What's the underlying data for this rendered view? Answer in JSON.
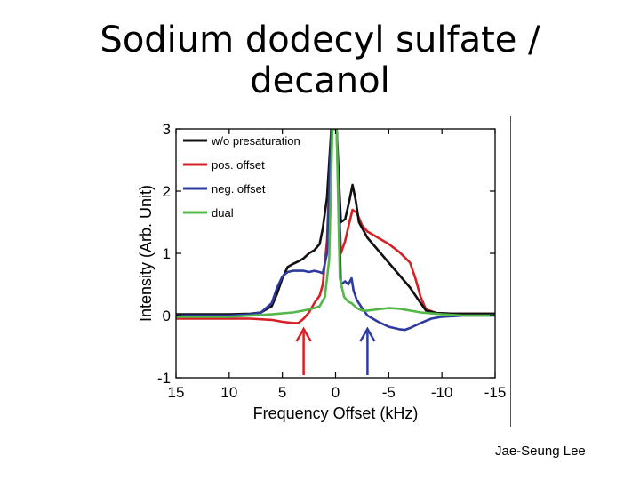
{
  "slide": {
    "title_line1": "Sodium dodecyl sulfate /",
    "title_line2": "decanol",
    "credit": "Jae-Seung Lee"
  },
  "chart_data": {
    "type": "line",
    "title": "",
    "xlabel": "Frequency Offset (kHz)",
    "ylabel": "Intensity (Arb. Unit)",
    "xlim": [
      15,
      -15
    ],
    "ylim": [
      -1,
      3
    ],
    "x_reversed": true,
    "xticks": [
      15,
      10,
      5,
      0,
      -5,
      -10,
      -15
    ],
    "yticks": [
      -1,
      0,
      1,
      2,
      3
    ],
    "grid": false,
    "legend_position": "top-left",
    "series": [
      {
        "name": "w/o presaturation",
        "color": "#111111",
        "points": [
          [
            15,
            0.02
          ],
          [
            10,
            0.02
          ],
          [
            8,
            0.03
          ],
          [
            7,
            0.05
          ],
          [
            6,
            0.15
          ],
          [
            5.5,
            0.35
          ],
          [
            5,
            0.6
          ],
          [
            4.5,
            0.78
          ],
          [
            4,
            0.83
          ],
          [
            3.5,
            0.87
          ],
          [
            3,
            0.92
          ],
          [
            2.5,
            1.0
          ],
          [
            2,
            1.05
          ],
          [
            1.5,
            1.15
          ],
          [
            1.2,
            1.4
          ],
          [
            0.8,
            1.9
          ],
          [
            0.4,
            3.0
          ],
          [
            0.1,
            3.0
          ],
          [
            -0.1,
            3.0
          ],
          [
            -0.5,
            1.5
          ],
          [
            -0.9,
            1.55
          ],
          [
            -1.3,
            1.85
          ],
          [
            -1.6,
            2.1
          ],
          [
            -1.9,
            1.85
          ],
          [
            -2.2,
            1.5
          ],
          [
            -3,
            1.25
          ],
          [
            -4,
            1.05
          ],
          [
            -5,
            0.85
          ],
          [
            -6,
            0.65
          ],
          [
            -7,
            0.45
          ],
          [
            -7.8,
            0.25
          ],
          [
            -8.5,
            0.08
          ],
          [
            -9.5,
            0.04
          ],
          [
            -11,
            0.03
          ],
          [
            -13,
            0.03
          ],
          [
            -15,
            0.03
          ]
        ]
      },
      {
        "name": "pos. offset",
        "color": "#d62027",
        "points": [
          [
            15,
            -0.05
          ],
          [
            10,
            -0.05
          ],
          [
            8,
            -0.05
          ],
          [
            6,
            -0.07
          ],
          [
            5,
            -0.1
          ],
          [
            4,
            -0.12
          ],
          [
            3.5,
            -0.12
          ],
          [
            3,
            -0.05
          ],
          [
            2.5,
            0.05
          ],
          [
            2,
            0.2
          ],
          [
            1.5,
            0.32
          ],
          [
            1.2,
            0.5
          ],
          [
            0.8,
            1.2
          ],
          [
            0.4,
            3.0
          ],
          [
            0.1,
            3.0
          ],
          [
            -0.1,
            3.0
          ],
          [
            -0.5,
            1.0
          ],
          [
            -0.9,
            1.2
          ],
          [
            -1.3,
            1.5
          ],
          [
            -1.6,
            1.7
          ],
          [
            -2,
            1.65
          ],
          [
            -2.5,
            1.45
          ],
          [
            -3,
            1.35
          ],
          [
            -4,
            1.25
          ],
          [
            -5,
            1.15
          ],
          [
            -6,
            1.02
          ],
          [
            -7,
            0.85
          ],
          [
            -7.5,
            0.6
          ],
          [
            -8,
            0.3
          ],
          [
            -8.5,
            0.1
          ],
          [
            -9.5,
            0.04
          ],
          [
            -11,
            0.03
          ],
          [
            -13,
            0.03
          ],
          [
            -15,
            0.03
          ]
        ]
      },
      {
        "name": "neg. offset",
        "color": "#2e3a9f",
        "points": [
          [
            15,
            0.0
          ],
          [
            10,
            0.0
          ],
          [
            8,
            0.02
          ],
          [
            7,
            0.05
          ],
          [
            6,
            0.2
          ],
          [
            5.5,
            0.45
          ],
          [
            5,
            0.63
          ],
          [
            4.5,
            0.7
          ],
          [
            4,
            0.72
          ],
          [
            3.5,
            0.72
          ],
          [
            3,
            0.72
          ],
          [
            2.5,
            0.7
          ],
          [
            2,
            0.72
          ],
          [
            1.5,
            0.7
          ],
          [
            1.2,
            0.68
          ],
          [
            0.8,
            1.0
          ],
          [
            0.4,
            3.0
          ],
          [
            0.1,
            3.0
          ],
          [
            -0.1,
            3.0
          ],
          [
            -0.5,
            0.5
          ],
          [
            -0.9,
            0.55
          ],
          [
            -1.2,
            0.5
          ],
          [
            -1.5,
            0.6
          ],
          [
            -1.7,
            0.4
          ],
          [
            -2,
            0.25
          ],
          [
            -2.5,
            0.12
          ],
          [
            -3,
            0.0
          ],
          [
            -3.5,
            -0.05
          ],
          [
            -4,
            -0.1
          ],
          [
            -5,
            -0.18
          ],
          [
            -6,
            -0.22
          ],
          [
            -6.5,
            -0.23
          ],
          [
            -7,
            -0.2
          ],
          [
            -8,
            -0.12
          ],
          [
            -9,
            -0.05
          ],
          [
            -10,
            -0.02
          ],
          [
            -12,
            0.0
          ],
          [
            -15,
            0.0
          ]
        ]
      },
      {
        "name": "dual",
        "color": "#53b848",
        "points": [
          [
            15,
            -0.02
          ],
          [
            10,
            -0.02
          ],
          [
            8,
            0.0
          ],
          [
            6,
            0.02
          ],
          [
            4,
            0.05
          ],
          [
            3,
            0.08
          ],
          [
            2,
            0.12
          ],
          [
            1.5,
            0.15
          ],
          [
            1.0,
            0.3
          ],
          [
            0.6,
            0.9
          ],
          [
            0.3,
            3.0
          ],
          [
            0.1,
            3.0
          ],
          [
            -0.1,
            3.0
          ],
          [
            -0.4,
            0.6
          ],
          [
            -0.8,
            0.3
          ],
          [
            -1.2,
            0.22
          ],
          [
            -1.5,
            0.2
          ],
          [
            -2,
            0.12
          ],
          [
            -2.5,
            0.08
          ],
          [
            -3,
            0.08
          ],
          [
            -4,
            0.1
          ],
          [
            -5,
            0.12
          ],
          [
            -6,
            0.11
          ],
          [
            -7,
            0.08
          ],
          [
            -8,
            0.05
          ],
          [
            -10,
            0.02
          ],
          [
            -12,
            0.0
          ],
          [
            -15,
            0.0
          ]
        ]
      }
    ],
    "arrows": [
      {
        "x": 3,
        "color": "#d62027"
      },
      {
        "x": -3,
        "color": "#2e3a9f"
      }
    ]
  }
}
